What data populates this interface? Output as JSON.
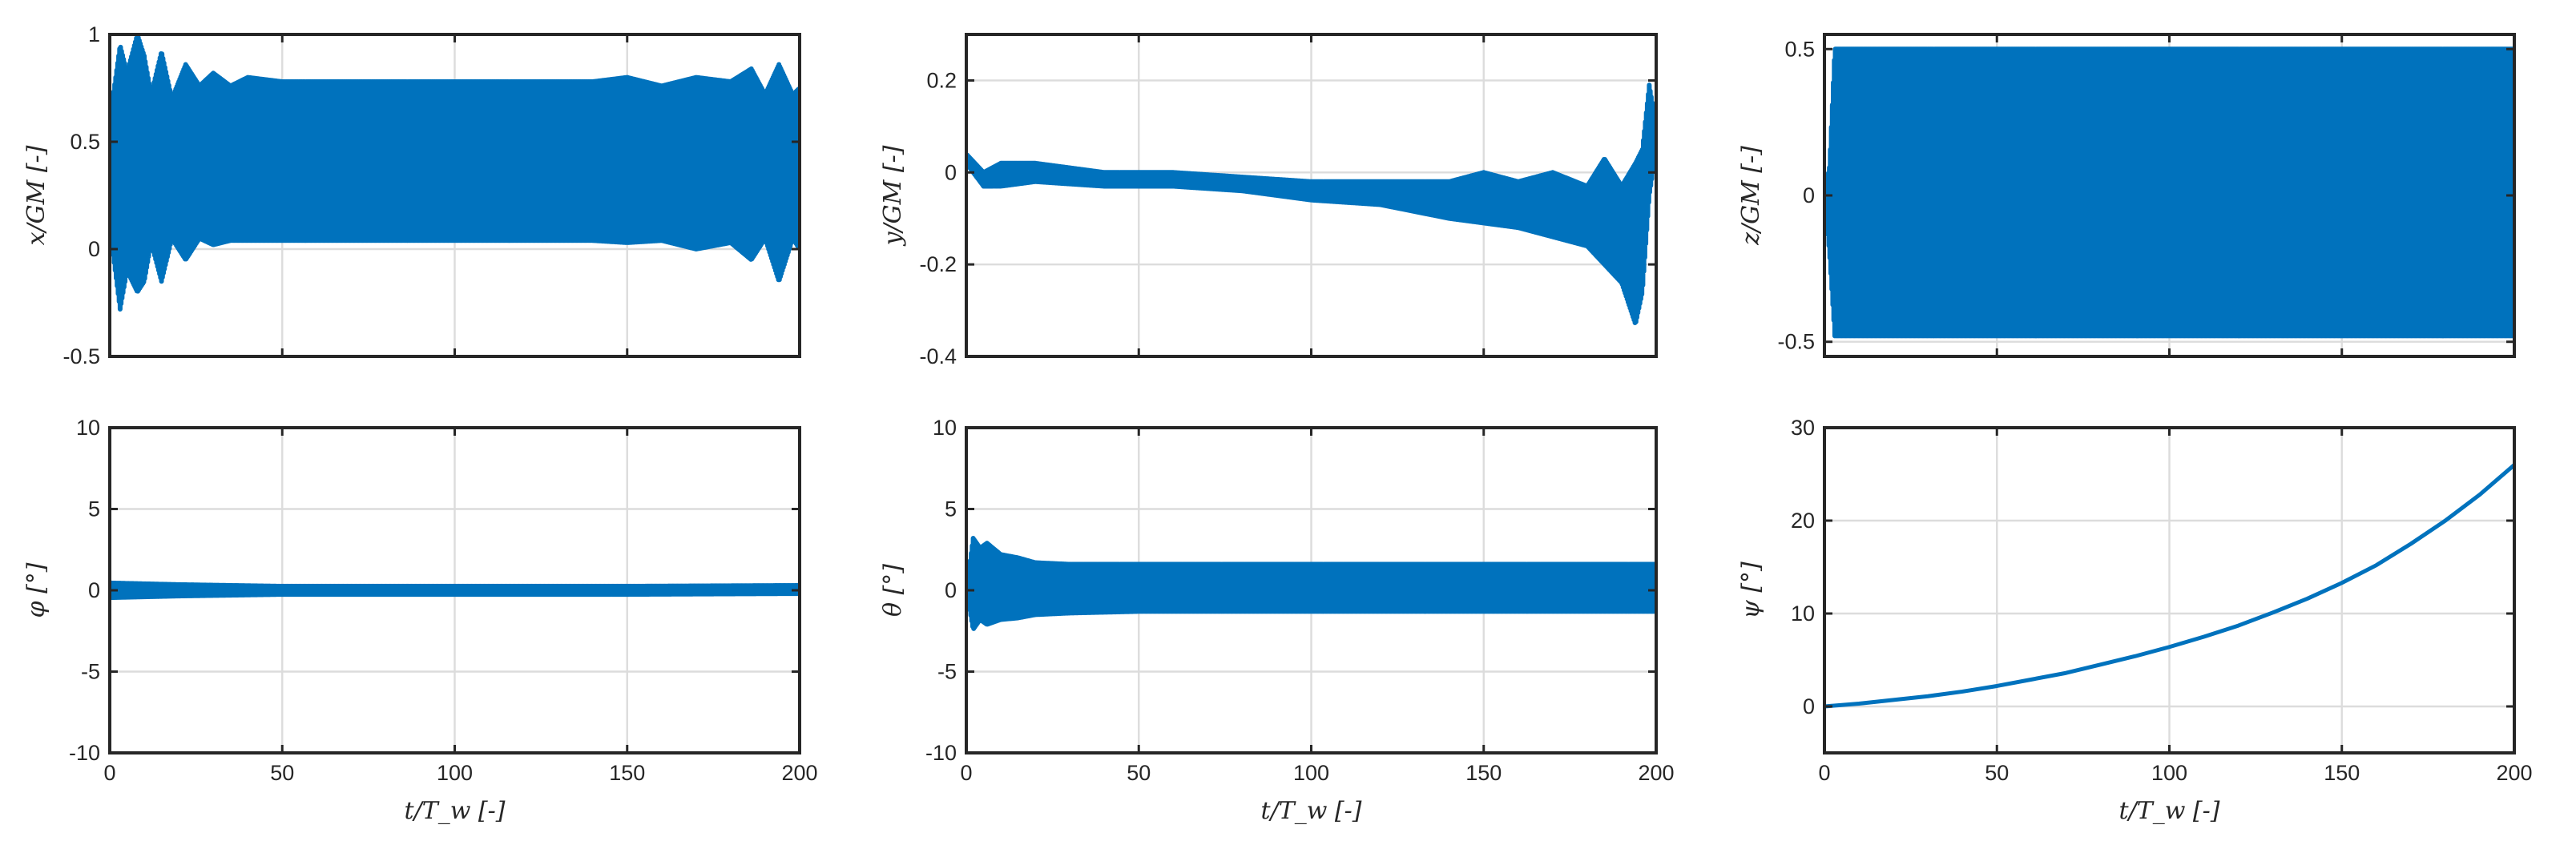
{
  "chart_data": [
    {
      "type": "line",
      "ylabel": "x/GM [-]",
      "xlabel": "",
      "xlim": [
        0,
        200
      ],
      "ylim": [
        -0.5,
        1
      ],
      "xticks": [
        0,
        50,
        100,
        150,
        200
      ],
      "xticklabels": [
        "",
        "",
        "",
        "",
        ""
      ],
      "yticks": [
        -0.5,
        0,
        0.5,
        1
      ],
      "yticklabels": [
        "-0.5",
        "0",
        "0.5",
        "1"
      ],
      "grid": true,
      "series_color": "#0072BD",
      "envelope": {
        "t": [
          0,
          3,
          5,
          8,
          10,
          12,
          15,
          18,
          22,
          26,
          30,
          35,
          40,
          50,
          60,
          100,
          140,
          150,
          160,
          170,
          180,
          186,
          190,
          194,
          198,
          200
        ],
        "upper": [
          0.6,
          0.95,
          0.82,
          1.0,
          0.9,
          0.72,
          0.92,
          0.7,
          0.86,
          0.76,
          0.82,
          0.76,
          0.8,
          0.78,
          0.78,
          0.78,
          0.78,
          0.8,
          0.76,
          0.8,
          0.78,
          0.84,
          0.72,
          0.86,
          0.72,
          0.75
        ],
        "lower": [
          0.1,
          -0.28,
          -0.1,
          -0.2,
          -0.15,
          0.03,
          -0.15,
          0.05,
          -0.05,
          0.05,
          0.02,
          0.04,
          0.04,
          0.04,
          0.04,
          0.04,
          0.04,
          0.03,
          0.04,
          0.0,
          0.03,
          -0.05,
          0.05,
          -0.15,
          0.05,
          0.0
        ]
      }
    },
    {
      "type": "line",
      "ylabel": "y/GM [-]",
      "xlabel": "",
      "xlim": [
        0,
        200
      ],
      "ylim": [
        -0.4,
        0.3
      ],
      "xticks": [
        0,
        50,
        100,
        150,
        200
      ],
      "xticklabels": [
        "",
        "",
        "",
        "",
        ""
      ],
      "yticks": [
        -0.4,
        -0.2,
        0,
        0.2
      ],
      "yticklabels": [
        "-0.4",
        "-0.2",
        "0",
        "0.2"
      ],
      "grid": true,
      "series_color": "#0072BD",
      "envelope": {
        "t": [
          0,
          5,
          10,
          20,
          40,
          60,
          80,
          100,
          120,
          140,
          150,
          160,
          170,
          180,
          185,
          190,
          194,
          196,
          198,
          200
        ],
        "upper": [
          0.04,
          0.0,
          0.02,
          0.02,
          0.0,
          0.0,
          -0.01,
          -0.02,
          -0.02,
          -0.02,
          -0.0,
          -0.02,
          0.0,
          -0.03,
          0.03,
          -0.03,
          0.02,
          0.05,
          0.19,
          0.1
        ],
        "lower": [
          0.02,
          -0.03,
          -0.03,
          -0.02,
          -0.03,
          -0.03,
          -0.04,
          -0.06,
          -0.07,
          -0.1,
          -0.11,
          -0.12,
          -0.14,
          -0.16,
          -0.2,
          -0.24,
          -0.33,
          -0.26,
          -0.05,
          0.05
        ]
      }
    },
    {
      "type": "line",
      "ylabel": "z/GM [-]",
      "xlabel": "",
      "xlim": [
        0,
        200
      ],
      "ylim": [
        -0.55,
        0.55
      ],
      "xticks": [
        0,
        50,
        100,
        150,
        200
      ],
      "xticklabels": [
        "",
        "",
        "",
        "",
        ""
      ],
      "yticks": [
        -0.5,
        0,
        0.5
      ],
      "yticklabels": [
        "-0.5",
        "0",
        "0.5"
      ],
      "grid": true,
      "series_color": "#0072BD",
      "envelope": {
        "t": [
          0,
          1.5,
          3,
          200
        ],
        "upper": [
          0.0,
          0.1,
          0.5,
          0.5
        ],
        "lower": [
          0.0,
          -0.2,
          -0.48,
          -0.48
        ]
      }
    },
    {
      "type": "line",
      "ylabel": "φ [°]",
      "xlabel": "t/T_w [-]",
      "xlim": [
        0,
        200
      ],
      "ylim": [
        -10,
        10
      ],
      "xticks": [
        0,
        50,
        100,
        150,
        200
      ],
      "xticklabels": [
        "0",
        "50",
        "100",
        "150",
        "200"
      ],
      "yticks": [
        -10,
        -5,
        0,
        5,
        10
      ],
      "yticklabels": [
        "-10",
        "-5",
        "0",
        "5",
        "10"
      ],
      "grid": true,
      "series_color": "#0072BD",
      "envelope": {
        "t": [
          0,
          20,
          50,
          100,
          150,
          200
        ],
        "upper": [
          0.45,
          0.35,
          0.25,
          0.25,
          0.25,
          0.3
        ],
        "lower": [
          -0.45,
          -0.35,
          -0.25,
          -0.25,
          -0.25,
          -0.2
        ]
      }
    },
    {
      "type": "line",
      "ylabel": "θ [°]",
      "xlabel": "t/T_w [-]",
      "xlim": [
        0,
        200
      ],
      "ylim": [
        -10,
        10
      ],
      "xticks": [
        0,
        50,
        100,
        150,
        200
      ],
      "xticklabels": [
        "0",
        "50",
        "100",
        "150",
        "200"
      ],
      "yticks": [
        -10,
        -5,
        0,
        5,
        10
      ],
      "yticklabels": [
        "-10",
        "-5",
        "0",
        "5",
        "10"
      ],
      "grid": true,
      "series_color": "#0072BD",
      "envelope": {
        "t": [
          0,
          2,
          4,
          6,
          10,
          15,
          20,
          30,
          50,
          100,
          150,
          200
        ],
        "upper": [
          0.0,
          3.2,
          2.6,
          2.9,
          2.2,
          2.0,
          1.7,
          1.6,
          1.6,
          1.6,
          1.6,
          1.6
        ],
        "lower": [
          0.0,
          -2.4,
          -1.8,
          -2.1,
          -1.8,
          -1.7,
          -1.5,
          -1.4,
          -1.3,
          -1.3,
          -1.3,
          -1.3
        ]
      }
    },
    {
      "type": "line",
      "ylabel": "ψ [°]",
      "xlabel": "t/T_w [-]",
      "xlim": [
        0,
        200
      ],
      "ylim": [
        -5,
        30
      ],
      "xticks": [
        0,
        50,
        100,
        150,
        200
      ],
      "xticklabels": [
        "0",
        "50",
        "100",
        "150",
        "200"
      ],
      "yticks": [
        0,
        10,
        20,
        30
      ],
      "yticklabels": [
        "0",
        "10",
        "20",
        "30"
      ],
      "grid": true,
      "series_color": "#0072BD",
      "x": [
        0,
        10,
        20,
        30,
        40,
        50,
        60,
        70,
        80,
        90,
        100,
        110,
        120,
        130,
        140,
        150,
        160,
        170,
        180,
        190,
        200
      ],
      "y": [
        0,
        0.3,
        0.7,
        1.1,
        1.6,
        2.2,
        2.9,
        3.6,
        4.5,
        5.4,
        6.4,
        7.5,
        8.7,
        10.1,
        11.6,
        13.3,
        15.2,
        17.5,
        20.0,
        22.8,
        26.0
      ]
    }
  ]
}
